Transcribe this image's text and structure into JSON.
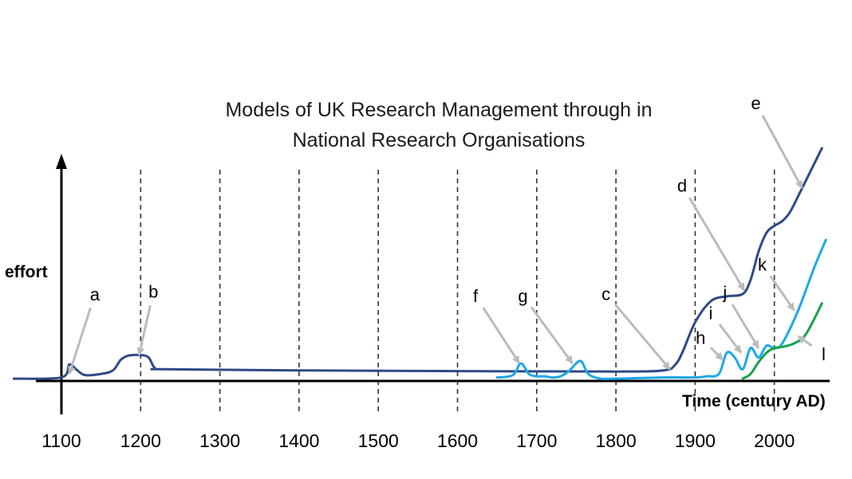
{
  "chart_data": {
    "type": "line",
    "title_line1": "Models of UK Research Management through in",
    "title_line2": "National Research Organisations",
    "ylabel": "effort",
    "xlabel": "Time (century AD)",
    "xlim": [
      1040,
      2065
    ],
    "ylim": [
      0,
      1
    ],
    "x_ticks": [
      "1100",
      "1200",
      "1300",
      "1400",
      "1500",
      "1600",
      "1700",
      "1800",
      "1900",
      "2000"
    ],
    "gridlines_x": [
      1200,
      1300,
      1400,
      1500,
      1600,
      1700,
      1800,
      1900,
      2000
    ],
    "grid": "vertical dashed",
    "colors": {
      "dark": "#2E4A86",
      "light": "#1EA8E8",
      "green": "#16A34A",
      "arrow": "#BBBBBB",
      "grid": "#333333"
    },
    "series": [
      {
        "color": "dark",
        "x": [
          1040,
          1100,
          1110,
          1120,
          1130,
          1150,
          1165,
          1175,
          1185,
          1200,
          1210,
          1218,
          1230,
          1400,
          1600,
          1800,
          1860,
          1875,
          1885,
          1900,
          1920,
          1940,
          1960,
          1970,
          1980,
          1990,
          2000,
          2010,
          2020,
          2035,
          2060
        ],
        "y": [
          0.01,
          0.015,
          0.07,
          0.045,
          0.025,
          0.03,
          0.045,
          0.09,
          0.108,
          0.11,
          0.1,
          0.055,
          0.05,
          0.045,
          0.042,
          0.04,
          0.045,
          0.07,
          0.13,
          0.25,
          0.34,
          0.36,
          0.37,
          0.43,
          0.55,
          0.63,
          0.66,
          0.68,
          0.72,
          0.82,
          0.99
        ]
      },
      {
        "color": "light",
        "x": [
          1650,
          1670,
          1680,
          1690,
          1700,
          1710,
          1720,
          1730,
          1740,
          1755,
          1765,
          1780,
          1800,
          1860,
          1900,
          1915,
          1930,
          1940,
          1950,
          1960,
          1970,
          1980,
          1990,
          2000,
          2010,
          2030,
          2050,
          2065
        ],
        "y": [
          0.015,
          0.025,
          0.075,
          0.03,
          0.02,
          0.02,
          0.015,
          0.02,
          0.04,
          0.085,
          0.03,
          0.01,
          0.01,
          0.015,
          0.015,
          0.02,
          0.03,
          0.12,
          0.1,
          0.05,
          0.14,
          0.1,
          0.15,
          0.14,
          0.16,
          0.3,
          0.48,
          0.6
        ]
      },
      {
        "color": "green",
        "x": [
          1960,
          1970,
          1980,
          1990,
          2000,
          2010,
          2025,
          2040,
          2060
        ],
        "y": [
          0.01,
          0.03,
          0.08,
          0.12,
          0.14,
          0.145,
          0.16,
          0.2,
          0.33
        ]
      }
    ],
    "annotations": [
      {
        "label": "a",
        "x": 1110,
        "y": 0.03,
        "color": "dark"
      },
      {
        "label": "b",
        "x": 1198,
        "y": 0.11,
        "color": "dark"
      },
      {
        "label": "c",
        "x": 1868,
        "y": 0.05,
        "color": "dark"
      },
      {
        "label": "d",
        "x": 1962,
        "y": 0.385,
        "color": "dark"
      },
      {
        "label": "e",
        "x": 2035,
        "y": 0.82,
        "color": "dark"
      },
      {
        "label": "f",
        "x": 1678,
        "y": 0.075,
        "color": "light"
      },
      {
        "label": "g",
        "x": 1745,
        "y": 0.075,
        "color": "light"
      },
      {
        "label": "h",
        "x": 1935,
        "y": 0.09,
        "color": "light"
      },
      {
        "label": "i",
        "x": 1958,
        "y": 0.12,
        "color": "light"
      },
      {
        "label": "j",
        "x": 1980,
        "y": 0.14,
        "color": "light"
      },
      {
        "label": "k",
        "x": 2025,
        "y": 0.3,
        "color": "light"
      },
      {
        "label": "l",
        "x": 2030,
        "y": 0.19,
        "color": "green"
      }
    ]
  }
}
